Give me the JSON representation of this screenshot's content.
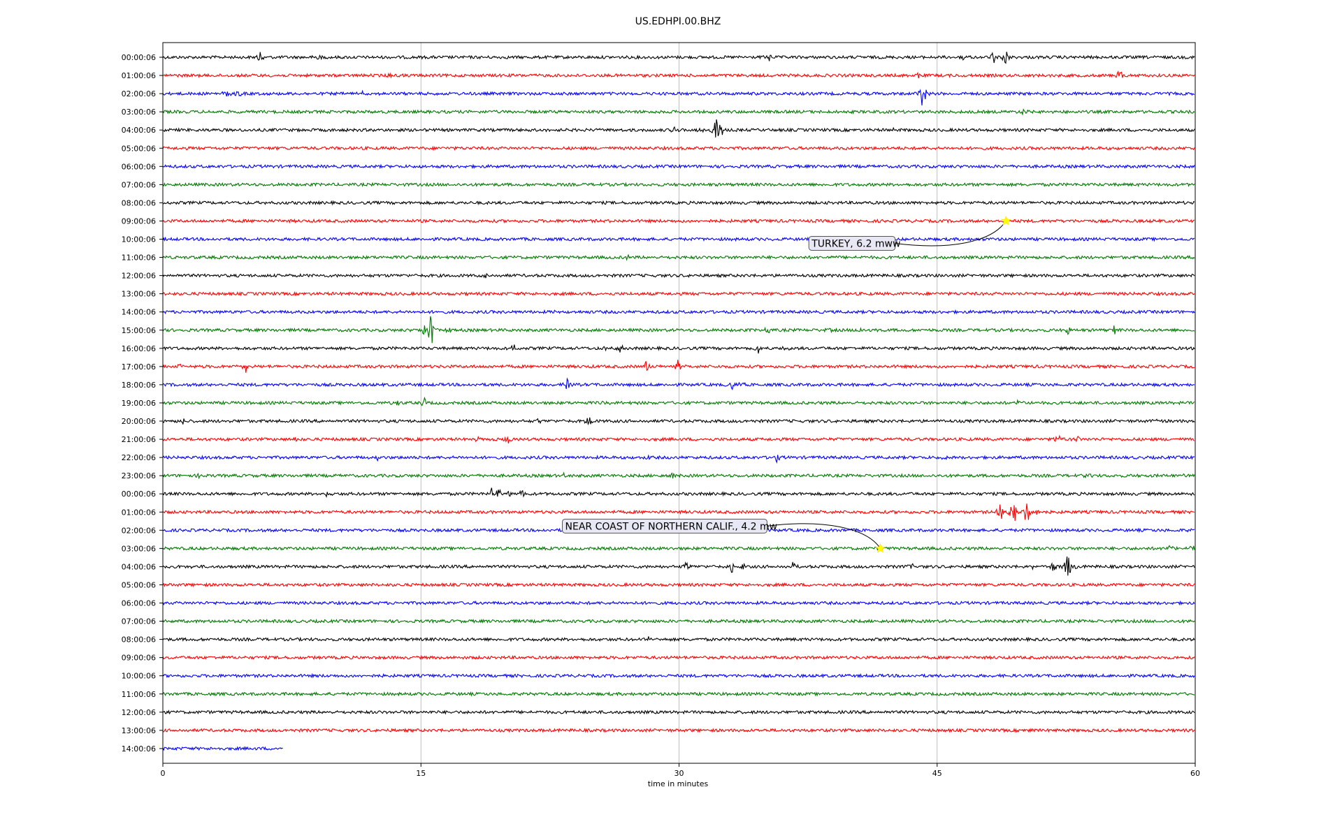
{
  "chart_data": {
    "type": "line",
    "title": "US.EDHPI.00.BHZ",
    "xlabel": "time in minutes",
    "ylabel": "",
    "xlim": [
      0,
      60
    ],
    "x_ticks": [
      0,
      15,
      30,
      45,
      60
    ],
    "grid": "vertical",
    "colors": [
      "#000000",
      "#ff0000",
      "#0000ff",
      "#007700"
    ],
    "rows": [
      {
        "label": "00:00:06",
        "color": "#000000",
        "end_min": 60,
        "spikes": [
          {
            "t": 5.7,
            "a": 10
          },
          {
            "t": 9,
            "a": 5
          },
          {
            "t": 35.2,
            "a": 12
          },
          {
            "t": 46.5,
            "a": 6
          },
          {
            "t": 48.3,
            "a": 14
          },
          {
            "t": 49,
            "a": 16
          }
        ]
      },
      {
        "label": "01:00:06",
        "color": "#ff0000",
        "end_min": 60,
        "spikes": [
          {
            "t": 13.2,
            "a": 4
          },
          {
            "t": 43.9,
            "a": 9
          },
          {
            "t": 55.6,
            "a": 13
          },
          {
            "t": 56.3,
            "a": 4
          }
        ]
      },
      {
        "label": "02:00:06",
        "color": "#0000ff",
        "end_min": 60,
        "spikes": [
          {
            "t": 3.7,
            "a": 12
          },
          {
            "t": 4.4,
            "a": 5
          },
          {
            "t": 11.6,
            "a": 4
          },
          {
            "t": 44.1,
            "a": 16
          },
          {
            "t": 44.3,
            "a": 12
          }
        ]
      },
      {
        "label": "03:00:06",
        "color": "#007700",
        "end_min": 60,
        "spikes": [
          {
            "t": 50,
            "a": 7
          }
        ]
      },
      {
        "label": "04:00:06",
        "color": "#000000",
        "end_min": 60,
        "spikes": [
          {
            "t": 29.7,
            "a": 7
          },
          {
            "t": 31.2,
            "a": 6
          },
          {
            "t": 32.2,
            "a": 34
          },
          {
            "t": 32.5,
            "a": 10
          },
          {
            "t": 42.4,
            "a": 3
          }
        ]
      },
      {
        "label": "05:00:06",
        "color": "#ff0000",
        "end_min": 60,
        "spikes": []
      },
      {
        "label": "06:00:06",
        "color": "#0000ff",
        "end_min": 60,
        "spikes": []
      },
      {
        "label": "07:00:06",
        "color": "#007700",
        "end_min": 60,
        "spikes": []
      },
      {
        "label": "08:00:06",
        "color": "#000000",
        "end_min": 60,
        "spikes": []
      },
      {
        "label": "09:00:06",
        "color": "#ff0000",
        "end_min": 60,
        "spikes": []
      },
      {
        "label": "10:00:06",
        "color": "#0000ff",
        "end_min": 60,
        "spikes": []
      },
      {
        "label": "11:00:06",
        "color": "#007700",
        "end_min": 60,
        "spikes": [
          {
            "t": 27,
            "a": 4
          }
        ]
      },
      {
        "label": "12:00:06",
        "color": "#000000",
        "end_min": 60,
        "spikes": [
          {
            "t": 18.8,
            "a": 3
          }
        ]
      },
      {
        "label": "13:00:06",
        "color": "#ff0000",
        "end_min": 60,
        "spikes": []
      },
      {
        "label": "14:00:06",
        "color": "#0000ff",
        "end_min": 60,
        "spikes": [
          {
            "t": 22.8,
            "a": 3
          }
        ]
      },
      {
        "label": "15:00:06",
        "color": "#007700",
        "end_min": 60,
        "spikes": [
          {
            "t": 15.2,
            "a": 12
          },
          {
            "t": 15.6,
            "a": 44
          },
          {
            "t": 16.3,
            "a": 9
          },
          {
            "t": 16.7,
            "a": 7
          },
          {
            "t": 35.2,
            "a": 6
          },
          {
            "t": 38.7,
            "a": 4
          },
          {
            "t": 40.5,
            "a": 4
          },
          {
            "t": 41.5,
            "a": 5
          },
          {
            "t": 52.6,
            "a": 7
          },
          {
            "t": 55.3,
            "a": 7
          }
        ]
      },
      {
        "label": "16:00:06",
        "color": "#000000",
        "end_min": 60,
        "spikes": [
          {
            "t": 20.4,
            "a": 8
          },
          {
            "t": 25.8,
            "a": 6
          },
          {
            "t": 26.6,
            "a": 6
          },
          {
            "t": 34.6,
            "a": 8
          },
          {
            "t": 36.2,
            "a": 4
          }
        ]
      },
      {
        "label": "17:00:06",
        "color": "#ff0000",
        "end_min": 60,
        "spikes": [
          {
            "t": 1,
            "a": 7
          },
          {
            "t": 4.8,
            "a": 11
          },
          {
            "t": 28.1,
            "a": 11
          },
          {
            "t": 29.9,
            "a": 13
          }
        ]
      },
      {
        "label": "18:00:06",
        "color": "#0000ff",
        "end_min": 60,
        "spikes": [
          {
            "t": 23.5,
            "a": 10
          },
          {
            "t": 33.1,
            "a": 8
          },
          {
            "t": 33.6,
            "a": 6
          }
        ]
      },
      {
        "label": "19:00:06",
        "color": "#007700",
        "end_min": 60,
        "spikes": [
          {
            "t": 13.6,
            "a": 5
          },
          {
            "t": 15.2,
            "a": 7
          },
          {
            "t": 25.8,
            "a": 4
          },
          {
            "t": 49.7,
            "a": 6
          },
          {
            "t": 50.4,
            "a": 6
          }
        ]
      },
      {
        "label": "20:00:06",
        "color": "#000000",
        "end_min": 60,
        "spikes": [
          {
            "t": 1.2,
            "a": 6
          },
          {
            "t": 21.8,
            "a": 5
          },
          {
            "t": 24.8,
            "a": 10
          },
          {
            "t": 57.7,
            "a": 6
          }
        ]
      },
      {
        "label": "21:00:06",
        "color": "#ff0000",
        "end_min": 60,
        "spikes": [
          {
            "t": 7.8,
            "a": 4
          },
          {
            "t": 18.2,
            "a": 6
          },
          {
            "t": 20.1,
            "a": 8
          },
          {
            "t": 52,
            "a": 9
          },
          {
            "t": 53.2,
            "a": 5
          }
        ]
      },
      {
        "label": "22:00:06",
        "color": "#0000ff",
        "end_min": 60,
        "spikes": [
          {
            "t": 12.5,
            "a": 5
          },
          {
            "t": 14.3,
            "a": 6
          },
          {
            "t": 28.1,
            "a": 6
          },
          {
            "t": 35.7,
            "a": 8
          },
          {
            "t": 45.5,
            "a": 9
          }
        ]
      },
      {
        "label": "23:00:06",
        "color": "#007700",
        "end_min": 60,
        "spikes": [
          {
            "t": 2.2,
            "a": 5
          },
          {
            "t": 23.3,
            "a": 4
          },
          {
            "t": 29.6,
            "a": 7
          },
          {
            "t": 53.8,
            "a": 4
          },
          {
            "t": 59.2,
            "a": 8
          }
        ]
      },
      {
        "label": "00:00:06",
        "color": "#000000",
        "end_min": 60,
        "spikes": [
          {
            "t": 9.5,
            "a": 4
          },
          {
            "t": 19.1,
            "a": 8
          },
          {
            "t": 19.5,
            "a": 12
          },
          {
            "t": 20.1,
            "a": 7
          },
          {
            "t": 20.9,
            "a": 9
          }
        ]
      },
      {
        "label": "01:00:06",
        "color": "#ff0000",
        "end_min": 60,
        "spikes": [
          {
            "t": 48.7,
            "a": 24
          },
          {
            "t": 49.2,
            "a": 14
          },
          {
            "t": 49.5,
            "a": 16
          },
          {
            "t": 50.2,
            "a": 30
          },
          {
            "t": 50.9,
            "a": 10
          }
        ]
      },
      {
        "label": "02:00:06",
        "color": "#0000ff",
        "end_min": 60,
        "spikes": []
      },
      {
        "label": "03:00:06",
        "color": "#007700",
        "end_min": 60,
        "spikes": [
          {
            "t": 58.5,
            "a": 5
          },
          {
            "t": 59.8,
            "a": 6
          }
        ]
      },
      {
        "label": "04:00:06",
        "color": "#000000",
        "end_min": 60,
        "spikes": [
          {
            "t": 1.5,
            "a": 5
          },
          {
            "t": 30.4,
            "a": 9
          },
          {
            "t": 33.1,
            "a": 10
          },
          {
            "t": 33.8,
            "a": 6
          },
          {
            "t": 36.6,
            "a": 7
          },
          {
            "t": 43.5,
            "a": 6
          },
          {
            "t": 50.7,
            "a": 8
          },
          {
            "t": 51.7,
            "a": 9
          },
          {
            "t": 52.6,
            "a": 30
          },
          {
            "t": 53.1,
            "a": 8
          }
        ]
      },
      {
        "label": "05:00:06",
        "color": "#ff0000",
        "end_min": 60,
        "spikes": []
      },
      {
        "label": "06:00:06",
        "color": "#0000ff",
        "end_min": 60,
        "spikes": []
      },
      {
        "label": "07:00:06",
        "color": "#007700",
        "end_min": 60,
        "spikes": []
      },
      {
        "label": "08:00:06",
        "color": "#000000",
        "end_min": 60,
        "spikes": [
          {
            "t": 28.2,
            "a": 4
          }
        ]
      },
      {
        "label": "09:00:06",
        "color": "#ff0000",
        "end_min": 60,
        "spikes": []
      },
      {
        "label": "10:00:06",
        "color": "#0000ff",
        "end_min": 60,
        "spikes": []
      },
      {
        "label": "11:00:06",
        "color": "#007700",
        "end_min": 60,
        "spikes": []
      },
      {
        "label": "12:00:06",
        "color": "#000000",
        "end_min": 60,
        "spikes": []
      },
      {
        "label": "13:00:06",
        "color": "#ff0000",
        "end_min": 60,
        "spikes": [
          {
            "t": 50.5,
            "a": 4
          }
        ]
      },
      {
        "label": "14:00:06",
        "color": "#0000ff",
        "end_min": 7,
        "spikes": []
      }
    ],
    "events": [
      {
        "label": "TURKEY, 6.2 mww",
        "row": 9,
        "t": 49.0,
        "marker_color": "#ffff00"
      },
      {
        "label": "NEAR COAST OF NORTHERN CALIF., 4.2 mw",
        "row": 27,
        "t": 41.7,
        "marker_color": "#ffff00"
      }
    ]
  }
}
